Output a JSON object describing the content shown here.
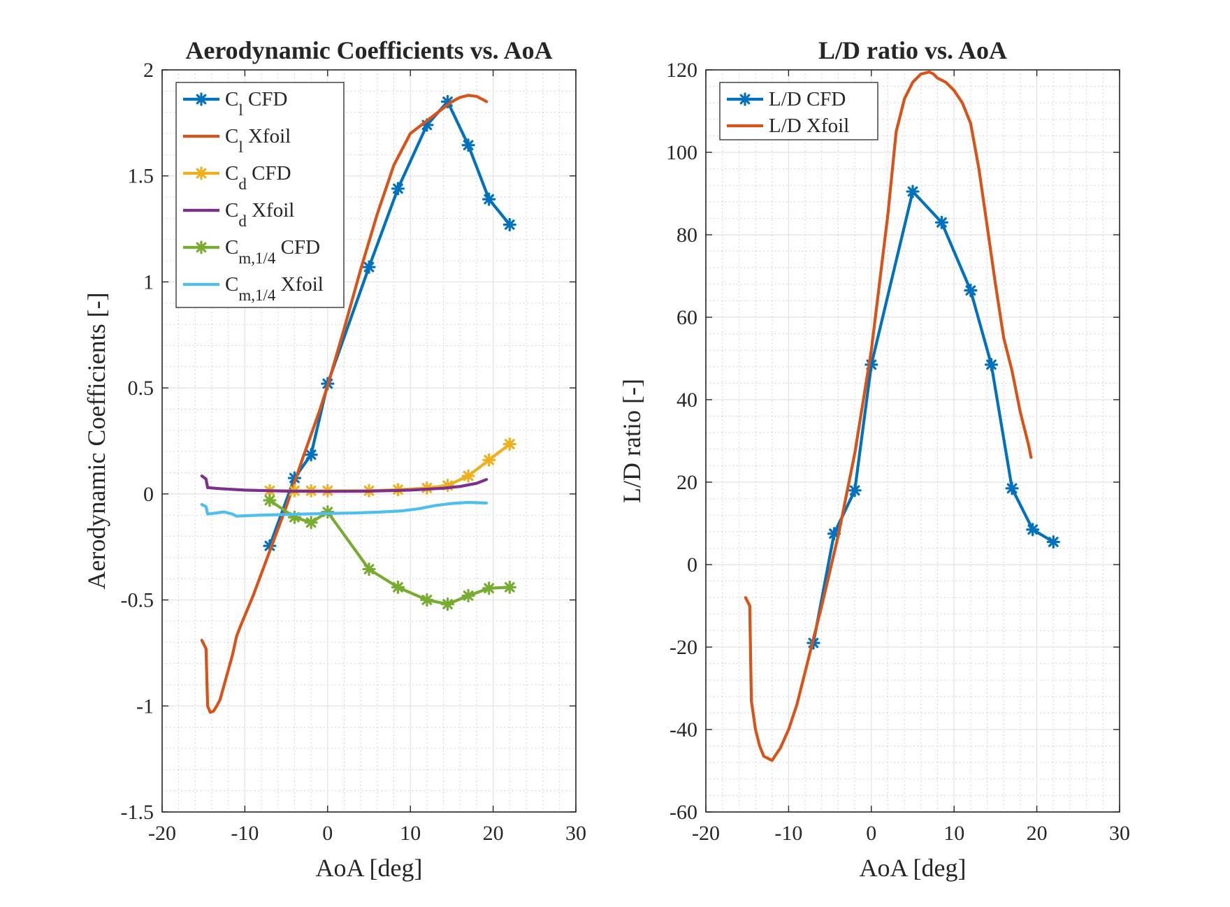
{
  "chart_data": [
    {
      "type": "line",
      "title": "Aerodynamic Coefficients vs. AoA",
      "xlabel": "AoA [deg]",
      "ylabel": "Aerodynamic Coefficients [-]",
      "xlim": [
        -20,
        30
      ],
      "ylim": [
        -1.5,
        2
      ],
      "xticks": [
        -20,
        -10,
        0,
        10,
        20,
        30
      ],
      "yticks": [
        -1.5,
        -1,
        -0.5,
        0,
        0.5,
        1,
        1.5,
        2
      ],
      "xtick_labels": [
        "-20",
        "-10",
        "0",
        "10",
        "20",
        "30"
      ],
      "ytick_labels": [
        "-1.5",
        "-1",
        "-0.5",
        "0",
        "0.5",
        "1",
        "1.5",
        "2"
      ],
      "grid": true,
      "minor_grid": true,
      "legend_position": "top-left",
      "series": [
        {
          "name": "C_l CFD",
          "label_main": "C",
          "label_sub": "l",
          "label_rest": " CFD",
          "color": "#0072BD",
          "marker": "asterisk",
          "x": [
            -7,
            -4,
            -2,
            0,
            5,
            8.5,
            12,
            14.5,
            17,
            19.5,
            22
          ],
          "y": [
            -0.245,
            0.075,
            0.185,
            0.52,
            1.07,
            1.44,
            1.74,
            1.85,
            1.645,
            1.39,
            1.27
          ]
        },
        {
          "name": "C_l Xfoil",
          "label_main": "C",
          "label_sub": "l",
          "label_rest": " Xfoil",
          "color": "#D95319",
          "marker": "none",
          "x": [
            -15.2,
            -14.7,
            -14.5,
            -14.2,
            -13.8,
            -13.4,
            -13,
            -12.5,
            -12,
            -11.5,
            -11,
            -10.5,
            -9,
            -7,
            -5,
            -3,
            -1,
            0,
            2,
            4,
            6,
            8,
            10,
            12,
            14,
            15,
            16,
            17,
            18,
            19,
            19.2
          ],
          "y": [
            -0.69,
            -0.73,
            -1.0,
            -1.03,
            -1.025,
            -1.0,
            -0.97,
            -0.9,
            -0.83,
            -0.76,
            -0.67,
            -0.62,
            -0.48,
            -0.27,
            -0.06,
            0.17,
            0.39,
            0.51,
            0.78,
            1.06,
            1.32,
            1.55,
            1.7,
            1.76,
            1.82,
            1.85,
            1.87,
            1.88,
            1.875,
            1.855,
            1.85
          ]
        },
        {
          "name": "C_d CFD",
          "label_main": "C",
          "label_sub": "d",
          "label_rest": " CFD",
          "color": "#EDB120",
          "marker": "asterisk",
          "x": [
            -7,
            -4,
            -2,
            0,
            5,
            8.5,
            12,
            14.5,
            17,
            19.5,
            22
          ],
          "y": [
            0.015,
            0.015,
            0.015,
            0.015,
            0.015,
            0.02,
            0.028,
            0.04,
            0.085,
            0.16,
            0.235
          ]
        },
        {
          "name": "C_d Xfoil",
          "label_main": "C",
          "label_sub": "d",
          "label_rest": " Xfoil",
          "color": "#7E2F8E",
          "marker": "none",
          "x": [
            -15.2,
            -14.7,
            -14.5,
            -13,
            -10,
            -5,
            0,
            5,
            10,
            14,
            16,
            18,
            19.2
          ],
          "y": [
            0.085,
            0.07,
            0.03,
            0.025,
            0.018,
            0.013,
            0.012,
            0.013,
            0.018,
            0.027,
            0.035,
            0.05,
            0.068
          ]
        },
        {
          "name": "C_m,1/4 CFD",
          "label_main": "C",
          "label_sub": "m,1/4",
          "label_rest": " CFD",
          "color": "#77AC30",
          "marker": "asterisk",
          "x": [
            -7,
            -4,
            -2,
            0,
            5,
            8.5,
            12,
            14.5,
            17,
            19.5,
            22
          ],
          "y": [
            -0.03,
            -0.11,
            -0.135,
            -0.085,
            -0.355,
            -0.44,
            -0.5,
            -0.52,
            -0.48,
            -0.445,
            -0.44
          ]
        },
        {
          "name": "C_m,1/4 Xfoil",
          "label_main": "C",
          "label_sub": "m,1/4",
          "label_rest": " Xfoil",
          "color": "#4DBEEE",
          "marker": "none",
          "x": [
            -15.2,
            -14.7,
            -14.5,
            -13.5,
            -12.5,
            -11.5,
            -11,
            -10,
            -8,
            -5,
            -2,
            0,
            3,
            6,
            9,
            11,
            13,
            15,
            17,
            19.2
          ],
          "y": [
            -0.05,
            -0.06,
            -0.095,
            -0.09,
            -0.085,
            -0.095,
            -0.105,
            -0.103,
            -0.1,
            -0.097,
            -0.094,
            -0.092,
            -0.09,
            -0.086,
            -0.08,
            -0.07,
            -0.055,
            -0.045,
            -0.04,
            -0.043
          ]
        }
      ]
    },
    {
      "type": "line",
      "title": "L/D ratio vs. AoA",
      "xlabel": "AoA [deg]",
      "ylabel": "L/D ratio [-]",
      "xlim": [
        -20,
        30
      ],
      "ylim": [
        -60,
        120
      ],
      "xticks": [
        -20,
        -10,
        0,
        10,
        20,
        30
      ],
      "yticks": [
        -60,
        -40,
        -20,
        0,
        20,
        40,
        60,
        80,
        100,
        120
      ],
      "xtick_labels": [
        "-20",
        "-10",
        "0",
        "10",
        "20",
        "30"
      ],
      "ytick_labels": [
        "-60",
        "-40",
        "-20",
        "0",
        "20",
        "40",
        "60",
        "80",
        "100",
        "120"
      ],
      "grid": true,
      "minor_grid": true,
      "legend_position": "top-left",
      "series": [
        {
          "name": "L/D CFD",
          "label_main": "L/D CFD",
          "label_sub": "",
          "label_rest": "",
          "color": "#0072BD",
          "marker": "asterisk",
          "x": [
            -7,
            -4.5,
            -2,
            0,
            5,
            8.5,
            12,
            14.5,
            17,
            19.5,
            22
          ],
          "y": [
            -19,
            7.5,
            18,
            48.5,
            90.5,
            83,
            66.5,
            48.5,
            18.5,
            8.5,
            5.5
          ]
        },
        {
          "name": "L/D Xfoil",
          "label_main": "L/D Xfoil",
          "label_sub": "",
          "label_rest": "",
          "color": "#D95319",
          "marker": "none",
          "x": [
            -15.2,
            -14.7,
            -14.5,
            -14,
            -13.5,
            -13,
            -12.5,
            -12,
            -11.5,
            -11,
            -10,
            -9,
            -8,
            -6,
            -4,
            -2,
            0,
            2,
            3,
            4,
            5,
            6,
            7,
            7.5,
            8,
            9,
            10,
            11,
            12,
            13,
            14,
            15,
            16,
            17,
            18,
            19,
            19.3
          ],
          "y": [
            -8,
            -10,
            -33,
            -40,
            -44,
            -46.5,
            -47,
            -47.5,
            -46,
            -44.5,
            -40,
            -34,
            -26,
            -10,
            7,
            27,
            52,
            85,
            105,
            113,
            117,
            119,
            119.5,
            119,
            118,
            117,
            115,
            112,
            107,
            96,
            82,
            68,
            55,
            47,
            37,
            29,
            26
          ]
        }
      ]
    }
  ]
}
